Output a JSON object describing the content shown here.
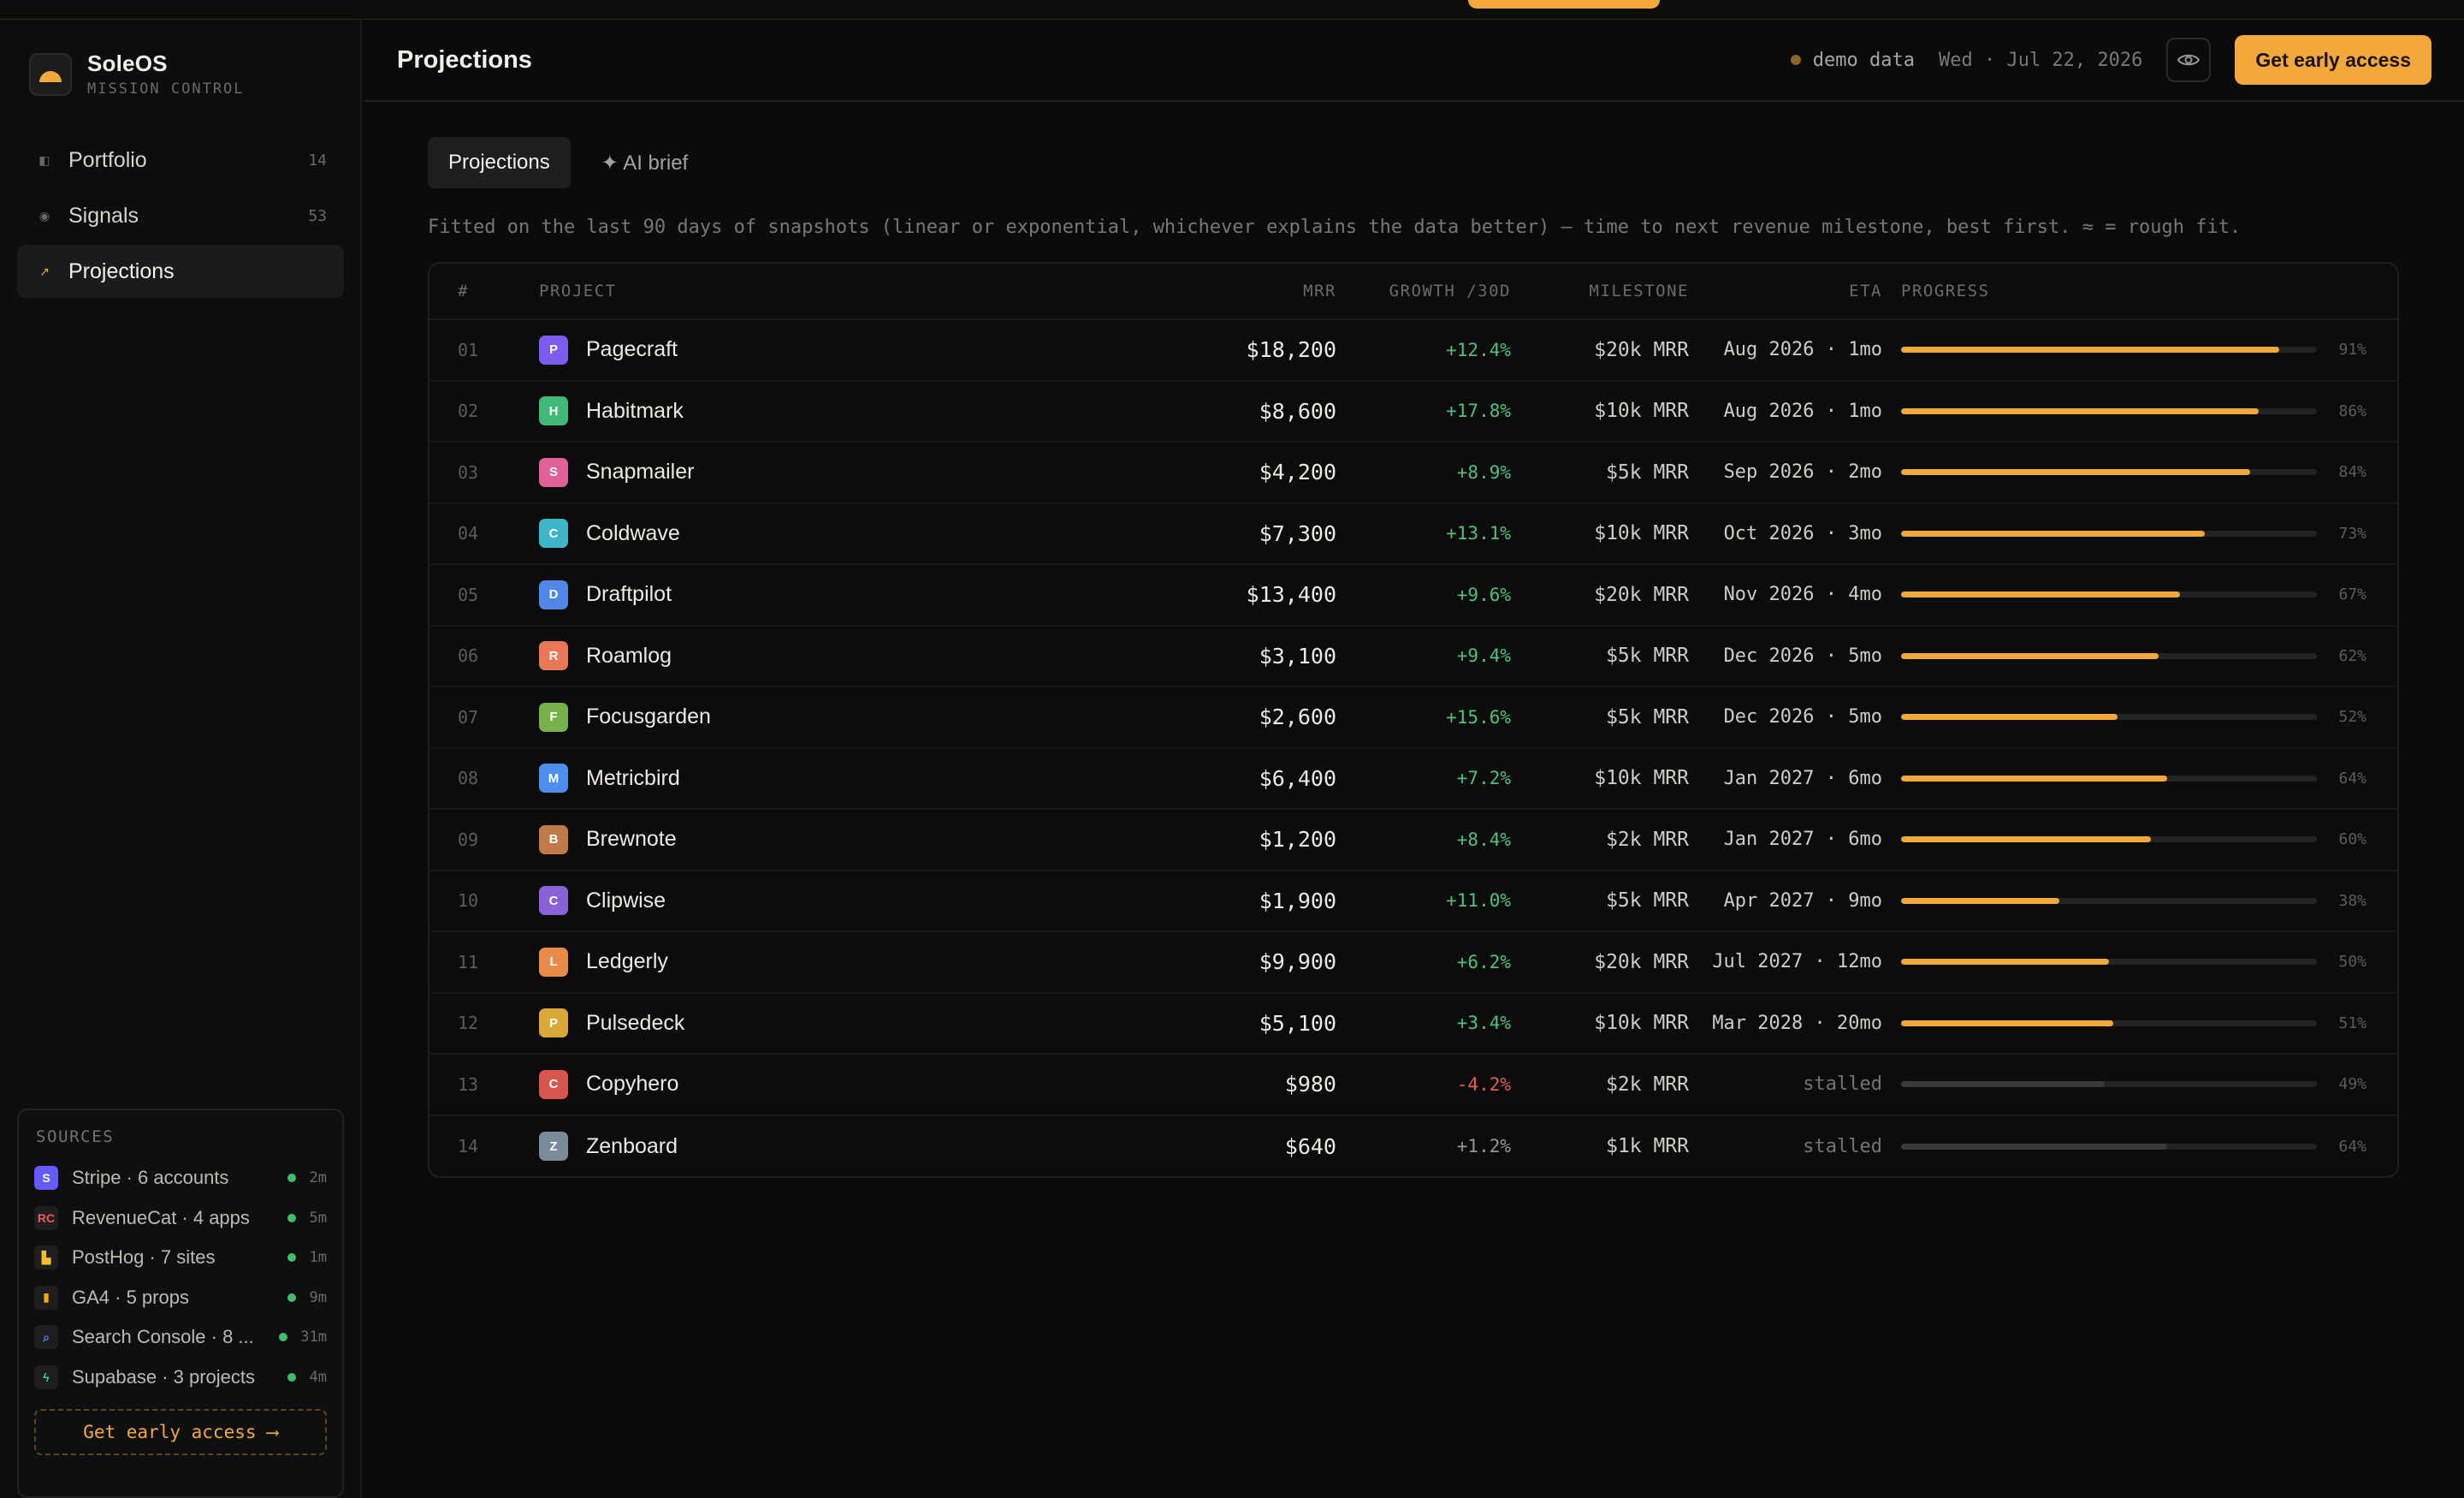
{
  "brand": {
    "name": "SoleOS",
    "subtitle": "MISSION CONTROL"
  },
  "nav": [
    {
      "label": "Portfolio",
      "count": "14",
      "icon": "portfolio-icon",
      "active": false
    },
    {
      "label": "Signals",
      "count": "53",
      "icon": "signals-icon",
      "active": false
    },
    {
      "label": "Projections",
      "count": "",
      "icon": "projections-icon",
      "active": true
    }
  ],
  "sources": {
    "title": "SOURCES",
    "items": [
      {
        "label": "Stripe · 6 accounts",
        "time": "2m",
        "icon": "stripe-icon",
        "color": "#635bff"
      },
      {
        "label": "RevenueCat · 4 apps",
        "time": "5m",
        "icon": "revenuecat-icon",
        "color": "#f25a5a"
      },
      {
        "label": "PostHog · 7 sites",
        "time": "1m",
        "icon": "posthog-icon",
        "color": "#f9bd2b"
      },
      {
        "label": "GA4 · 5 props",
        "time": "9m",
        "icon": "ga4-icon",
        "color": "#f9ab00"
      },
      {
        "label": "Search Console · 8 ...",
        "time": "31m",
        "icon": "search-console-icon",
        "color": "#4285f4"
      },
      {
        "label": "Supabase · 3 projects",
        "time": "4m",
        "icon": "supabase-icon",
        "color": "#3ecf8e"
      }
    ],
    "cta": "Get early access ⟶"
  },
  "header": {
    "title": "Projections",
    "demo_label": "demo data",
    "date": "Wed · Jul 22, 2026",
    "cta": "Get early access"
  },
  "tabs": [
    {
      "label": "Projections",
      "active": true
    },
    {
      "label": "✦ AI brief",
      "active": false
    }
  ],
  "description": "Fitted on the last 90 days of snapshots (linear or exponential, whichever explains the data better) — time to next revenue milestone, best first. ≈ = rough fit.",
  "table": {
    "columns": {
      "num": "#",
      "project": "PROJECT",
      "mrr": "MRR",
      "growth": "GROWTH /30D",
      "milestone": "MILESTONE",
      "eta": "ETA",
      "progress": "PROGRESS"
    },
    "rows": [
      {
        "num": "01",
        "letter": "P",
        "name": "Pagecraft",
        "mrr": "$18,200",
        "growth": "+12.4%",
        "milestone": "$20k MRR",
        "eta": "Aug 2026 · 1mo",
        "progress": 91,
        "pct": "91%",
        "color": "#7c5cf0",
        "stalled": false
      },
      {
        "num": "02",
        "letter": "H",
        "name": "Habitmark",
        "mrr": "$8,600",
        "growth": "+17.8%",
        "milestone": "$10k MRR",
        "eta": "Aug 2026 · 1mo",
        "progress": 86,
        "pct": "86%",
        "color": "#3fb978",
        "stalled": false
      },
      {
        "num": "03",
        "letter": "S",
        "name": "Snapmailer",
        "mrr": "$4,200",
        "growth": "+8.9%",
        "milestone": "$5k MRR",
        "eta": "Sep 2026 · 2mo",
        "progress": 84,
        "pct": "84%",
        "color": "#e0609a",
        "stalled": false
      },
      {
        "num": "04",
        "letter": "C",
        "name": "Coldwave",
        "mrr": "$7,300",
        "growth": "+13.1%",
        "milestone": "$10k MRR",
        "eta": "Oct 2026 · 3mo",
        "progress": 73,
        "pct": "73%",
        "color": "#3fb6c8",
        "stalled": false
      },
      {
        "num": "05",
        "letter": "D",
        "name": "Draftpilot",
        "mrr": "$13,400",
        "growth": "+9.6%",
        "milestone": "$20k MRR",
        "eta": "Nov 2026 · 4mo",
        "progress": 67,
        "pct": "67%",
        "color": "#4f86e8",
        "stalled": false
      },
      {
        "num": "06",
        "letter": "R",
        "name": "Roamlog",
        "mrr": "$3,100",
        "growth": "+9.4%",
        "milestone": "$5k MRR",
        "eta": "Dec 2026 · 5mo",
        "progress": 62,
        "pct": "62%",
        "color": "#e87856",
        "stalled": false
      },
      {
        "num": "07",
        "letter": "F",
        "name": "Focusgarden",
        "mrr": "$2,600",
        "growth": "+15.6%",
        "milestone": "$5k MRR",
        "eta": "Dec 2026 · 5mo",
        "progress": 52,
        "pct": "52%",
        "color": "#78b04a",
        "stalled": false
      },
      {
        "num": "08",
        "letter": "M",
        "name": "Metricbird",
        "mrr": "$6,400",
        "growth": "+7.2%",
        "milestone": "$10k MRR",
        "eta": "Jan 2027 · 6mo",
        "progress": 64,
        "pct": "64%",
        "color": "#4c8ef0",
        "stalled": false
      },
      {
        "num": "09",
        "letter": "B",
        "name": "Brewnote",
        "mrr": "$1,200",
        "growth": "+8.4%",
        "milestone": "$2k MRR",
        "eta": "Jan 2027 · 6mo",
        "progress": 60,
        "pct": "60%",
        "color": "#c07a48",
        "stalled": false
      },
      {
        "num": "10",
        "letter": "C",
        "name": "Clipwise",
        "mrr": "$1,900",
        "growth": "+11.0%",
        "milestone": "$5k MRR",
        "eta": "Apr 2027 · 9mo",
        "progress": 38,
        "pct": "38%",
        "color": "#8a62d8",
        "stalled": false
      },
      {
        "num": "11",
        "letter": "L",
        "name": "Ledgerly",
        "mrr": "$9,900",
        "growth": "+6.2%",
        "milestone": "$20k MRR",
        "eta": "Jul 2027 · 12mo",
        "progress": 50,
        "pct": "50%",
        "color": "#e88a48",
        "stalled": false
      },
      {
        "num": "12",
        "letter": "P",
        "name": "Pulsedeck",
        "mrr": "$5,100",
        "growth": "+3.4%",
        "milestone": "$10k MRR",
        "eta": "Mar 2028 · 20mo",
        "progress": 51,
        "pct": "51%",
        "color": "#d8a838",
        "stalled": false
      },
      {
        "num": "13",
        "letter": "C",
        "name": "Copyhero",
        "mrr": "$980",
        "growth": "-4.2%",
        "milestone": "$2k MRR",
        "eta": "stalled",
        "progress": 49,
        "pct": "49%",
        "color": "#d8564e",
        "stalled": true
      },
      {
        "num": "14",
        "letter": "Z",
        "name": "Zenboard",
        "mrr": "$640",
        "growth": "+1.2%",
        "milestone": "$1k MRR",
        "eta": "stalled",
        "progress": 64,
        "pct": "64%",
        "color": "#7a8a98",
        "stalled": true
      }
    ]
  }
}
